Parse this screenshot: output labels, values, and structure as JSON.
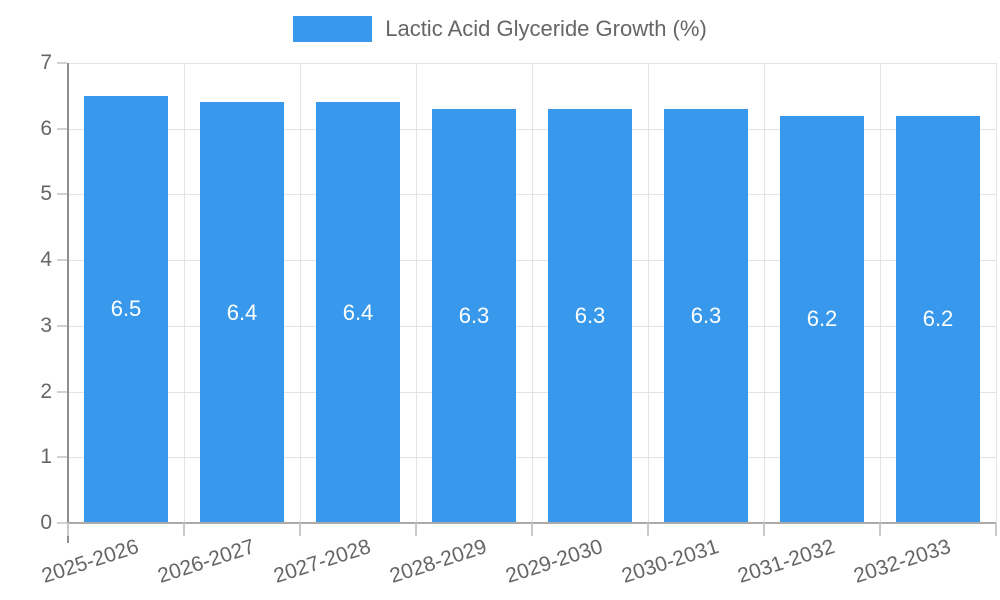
{
  "chart_data": {
    "type": "bar",
    "title": "Lactic Acid Glyceride Growth (%)",
    "categories": [
      "2025-2026",
      "2026-2027",
      "2027-2028",
      "2028-2029",
      "2029-2030",
      "2030-2031",
      "2031-2032",
      "2032-2033"
    ],
    "values": [
      6.5,
      6.4,
      6.4,
      6.3,
      6.3,
      6.3,
      6.2,
      6.2
    ],
    "value_labels": [
      "6.5",
      "6.4",
      "6.4",
      "6.3",
      "6.3",
      "6.3",
      "6.2",
      "6.2"
    ],
    "xlabel": "",
    "ylabel": "",
    "ylim": [
      0,
      7
    ],
    "ytick_step": 1,
    "yticks": [
      "0",
      "1",
      "2",
      "3",
      "4",
      "5",
      "6",
      "7"
    ],
    "grid": true,
    "legend_position": "top",
    "bar_color": "#3899ec",
    "value_label_color": "#ffffff",
    "axis_text_color": "#666666",
    "gridline_color": "#e4e4e4"
  }
}
